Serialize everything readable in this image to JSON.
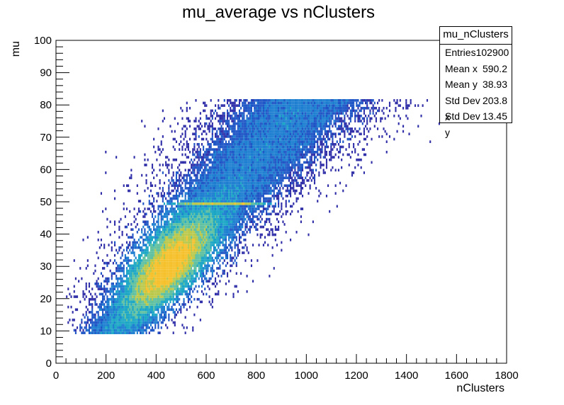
{
  "chart_data": {
    "type": "heatmap",
    "title": "mu_average vs nClusters",
    "xlabel": "nClusters",
    "ylabel": "mu",
    "xlim": [
      0,
      1800
    ],
    "ylim": [
      0,
      100
    ],
    "x_ticks": [
      "0",
      "200",
      "400",
      "600",
      "800",
      "1000",
      "1200",
      "1400",
      "1600",
      "1800"
    ],
    "y_ticks": [
      "0",
      "10",
      "20",
      "30",
      "40",
      "50",
      "60",
      "70",
      "80",
      "90",
      "100"
    ],
    "palette": [
      "#2f2ea8",
      "#1e55c6",
      "#1c7ed0",
      "#1aa6c4",
      "#5fc0a0",
      "#b9c84a",
      "#f5c02a"
    ],
    "grid": false,
    "stats_box": {
      "name": "mu_nClusters",
      "entries": [
        {
          "label": "Entries",
          "value": "102900"
        },
        {
          "label": "Mean x",
          "value": "590.2"
        },
        {
          "label": "Mean y",
          "value": "38.93"
        },
        {
          "label": "Std Dev x",
          "value": "203.8"
        },
        {
          "label": "Std Dev y",
          "value": "13.45"
        }
      ]
    },
    "distribution": {
      "mu_range": [
        9,
        81
      ],
      "mean_x": 590.2,
      "mean_y": 38.93,
      "std_x": 203.8,
      "std_y": 13.45,
      "peak_x": 450,
      "peak_y": 30,
      "enhanced_row_mu": 49
    }
  }
}
